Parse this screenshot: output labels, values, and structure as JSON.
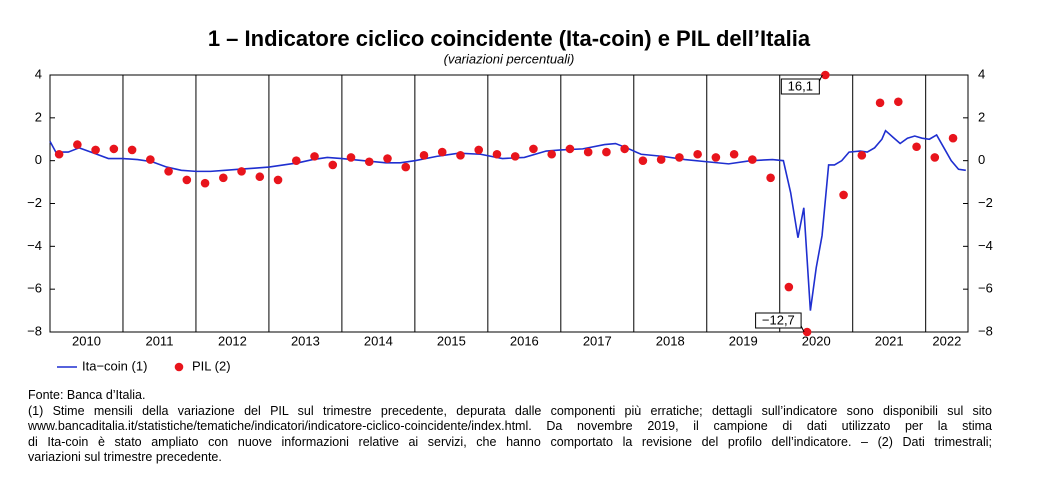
{
  "chart_data": {
    "type": "line",
    "title": "1 – Indicatore ciclico coincidente (Ita-coin) e PIL dell’Italia",
    "subtitle": "(variazioni percentuali)",
    "xlim": [
      2010,
      2022.58
    ],
    "xticks": [
      {
        "value": 2010.5,
        "label": "2010"
      },
      {
        "value": 2011.5,
        "label": "2011"
      },
      {
        "value": 2012.5,
        "label": "2012"
      },
      {
        "value": 2013.5,
        "label": "2013"
      },
      {
        "value": 2014.5,
        "label": "2014"
      },
      {
        "value": 2015.5,
        "label": "2015"
      },
      {
        "value": 2016.5,
        "label": "2016"
      },
      {
        "value": 2017.5,
        "label": "2017"
      },
      {
        "value": 2018.5,
        "label": "2018"
      },
      {
        "value": 2019.5,
        "label": "2019"
      },
      {
        "value": 2020.5,
        "label": "2020"
      },
      {
        "value": 2021.5,
        "label": "2021"
      },
      {
        "value": 2022.29,
        "label": "2022"
      }
    ],
    "xgrid": [
      2011,
      2012,
      2013,
      2014,
      2015,
      2016,
      2017,
      2018,
      2019,
      2020,
      2021,
      2022
    ],
    "ylim": [
      -8,
      4
    ],
    "yticks": [
      {
        "value": -8,
        "label": "−8"
      },
      {
        "value": -6,
        "label": "−6"
      },
      {
        "value": -4,
        "label": "−4"
      },
      {
        "value": -2,
        "label": "−2"
      },
      0,
      2,
      4
    ],
    "y2lim": [
      -8,
      4
    ],
    "y2ticks": [
      {
        "value": -8,
        "label": "−8"
      },
      {
        "value": -6,
        "label": "−6"
      },
      {
        "value": -4,
        "label": "−4"
      },
      {
        "value": -2,
        "label": "−2"
      },
      0,
      2,
      4
    ],
    "series": [
      {
        "name": "Ita−coin (1)",
        "type": "line",
        "color": "#1f2fd0",
        "x": [
          2010.0,
          2010.08,
          2010.25,
          2010.4,
          2010.6,
          2010.8,
          2011.0,
          2011.2,
          2011.4,
          2011.6,
          2011.8,
          2012.0,
          2012.2,
          2012.4,
          2012.6,
          2012.8,
          2013.0,
          2013.2,
          2013.4,
          2013.6,
          2013.8,
          2014.0,
          2014.3,
          2014.6,
          2014.8,
          2015.0,
          2015.3,
          2015.6,
          2015.9,
          2016.2,
          2016.5,
          2016.8,
          2017.0,
          2017.3,
          2017.6,
          2017.75,
          2017.9,
          2018.1,
          2018.4,
          2018.7,
          2019.0,
          2019.3,
          2019.6,
          2019.9,
          2020.05,
          2020.15,
          2020.25,
          2020.33,
          2020.42,
          2020.5,
          2020.58,
          2020.67,
          2020.75,
          2020.85,
          2020.95,
          2021.1,
          2021.2,
          2021.3,
          2021.4,
          2021.45,
          2021.55,
          2021.65,
          2021.75,
          2021.85,
          2021.95,
          2022.05,
          2022.15,
          2022.25,
          2022.35,
          2022.45,
          2022.55
        ],
        "values": [
          0.9,
          0.4,
          0.4,
          0.6,
          0.35,
          0.1,
          0.1,
          0.05,
          -0.05,
          -0.3,
          -0.45,
          -0.5,
          -0.5,
          -0.45,
          -0.4,
          -0.35,
          -0.3,
          -0.2,
          -0.1,
          0.05,
          0.15,
          0.1,
          0.0,
          -0.1,
          -0.1,
          0.0,
          0.2,
          0.35,
          0.3,
          0.1,
          0.15,
          0.45,
          0.5,
          0.55,
          0.75,
          0.8,
          0.6,
          0.3,
          0.2,
          0.05,
          -0.05,
          -0.15,
          0.0,
          0.05,
          0.0,
          -1.5,
          -3.6,
          -2.2,
          -7.0,
          -5.0,
          -3.5,
          -0.2,
          -0.2,
          0.0,
          0.4,
          0.45,
          0.4,
          0.6,
          1.0,
          1.4,
          1.1,
          0.8,
          1.05,
          1.15,
          1.05,
          1.0,
          1.2,
          0.6,
          0.0,
          -0.4,
          -0.45
        ]
      },
      {
        "name": "PIL (2)",
        "type": "scatter",
        "color": "#e8141c",
        "x": [
          2010.125,
          2010.375,
          2010.625,
          2010.875,
          2011.125,
          2011.375,
          2011.625,
          2011.875,
          2012.125,
          2012.375,
          2012.625,
          2012.875,
          2013.125,
          2013.375,
          2013.625,
          2013.875,
          2014.125,
          2014.375,
          2014.625,
          2014.875,
          2015.125,
          2015.375,
          2015.625,
          2015.875,
          2016.125,
          2016.375,
          2016.625,
          2016.875,
          2017.125,
          2017.375,
          2017.625,
          2017.875,
          2018.125,
          2018.375,
          2018.625,
          2018.875,
          2019.125,
          2019.375,
          2019.625,
          2019.875,
          2020.125,
          2020.375,
          2020.625,
          2020.875,
          2021.125,
          2021.375,
          2021.625,
          2021.875,
          2022.125,
          2022.375
        ],
        "values": [
          0.3,
          0.75,
          0.5,
          0.55,
          0.5,
          0.05,
          -0.5,
          -0.9,
          -1.05,
          -0.8,
          -0.5,
          -0.75,
          -0.9,
          0.0,
          0.2,
          -0.2,
          0.15,
          -0.05,
          0.1,
          -0.3,
          0.25,
          0.4,
          0.25,
          0.5,
          0.3,
          0.2,
          0.55,
          0.3,
          0.55,
          0.4,
          0.4,
          0.55,
          0.0,
          0.05,
          0.15,
          0.3,
          0.15,
          0.3,
          0.05,
          -0.8,
          -5.9,
          -12.7,
          16.1,
          -1.6,
          0.25,
          2.7,
          2.75,
          0.65,
          0.15,
          1.05
        ],
        "value_labels": [
          null,
          null,
          null,
          null,
          null,
          null,
          null,
          null,
          null,
          null,
          null,
          null,
          null,
          null,
          null,
          null,
          null,
          null,
          null,
          null,
          null,
          null,
          null,
          null,
          null,
          null,
          null,
          null,
          null,
          null,
          null,
          null,
          null,
          null,
          null,
          null,
          null,
          null,
          null,
          null,
          null,
          "−12,7",
          "16,1",
          null,
          null,
          null,
          null,
          null,
          null,
          null
        ]
      }
    ]
  },
  "notes": [
    "Fonte: Banca d’Italia.",
    "(1) Stime mensili della variazione del PIL sul trimestre precedente, depurata dalle componenti più erratiche; dettagli sull’indicatore sono disponibili sul sito",
    "www.bancaditalia.it/statistiche/tematiche/indicatori/indicatore-ciclico-coincidente/index.html. Da novembre 2019, il campione di dati utilizzato per la stima",
    "di Ita-coin è stato ampliato con nuove informazioni relative ai servizi, che hanno comportato la revisione del profilo dell’indicatore. – (2) Dati trimestrali;",
    "variazioni sul trimestre precedente."
  ]
}
